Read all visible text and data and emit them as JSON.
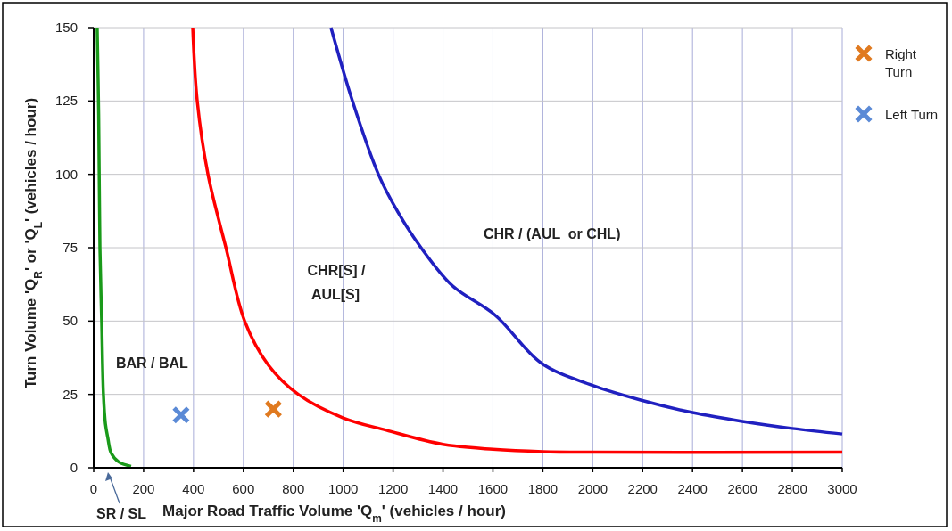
{
  "chart_data": {
    "type": "line",
    "xlabel": "Major Road Traffic Volume 'Q$_{m}$' (vehicles / hour)",
    "ylabel": "Turn Volume 'Q$_{R}$' or 'Q$_{L}$' (vehicles / hour)",
    "xlim": [
      0,
      3000
    ],
    "xticks": [
      0,
      200,
      400,
      600,
      800,
      1000,
      1200,
      1400,
      1600,
      1800,
      2000,
      2200,
      2400,
      2600,
      2800,
      3000
    ],
    "ylim": [
      0,
      150
    ],
    "yticks": [
      0,
      25,
      50,
      75,
      100,
      125,
      150
    ],
    "grid": true,
    "legend": "top right",
    "annotations": [
      "BAR / BAL",
      "CHR[S] / AUL[S]",
      "CHR / (AUL  or CHL)",
      "SR / SL"
    ],
    "series": [
      {
        "color": "#1a9a1a",
        "x": [
          14,
          20,
          25,
          32,
          39,
          47,
          57,
          70,
          100,
          150
        ],
        "values": [
          150,
          120,
          75,
          50,
          25,
          15,
          10,
          5,
          2,
          0.5
        ]
      },
      {
        "color": "#ff0000",
        "x": [
          397,
          415,
          458,
          530,
          605,
          700,
          820,
          1000,
          1173,
          1400,
          1600,
          1800,
          2000,
          3000
        ],
        "values": [
          150,
          125,
          100,
          75,
          50,
          35,
          25,
          17,
          12.8,
          8,
          6.3,
          5.5,
          5.3,
          5.3
        ]
      },
      {
        "color": "#2020c0",
        "x": [
          951,
          1037,
          1141,
          1220,
          1312,
          1438,
          1609,
          1795,
          1995,
          2195,
          2400,
          2600,
          2800,
          3000
        ],
        "values": [
          150,
          125,
          100,
          87,
          75,
          62,
          52,
          35.6,
          28.2,
          23,
          18.8,
          15.8,
          13.4,
          11.5
        ]
      },
      {
        "type": "scatter",
        "name": "Right Turn",
        "color": "#e07a20",
        "marker": "cross",
        "x": [
          720
        ],
        "values": [
          20
        ]
      },
      {
        "type": "scatter",
        "name": "Left Turn",
        "color": "#5b8ad6",
        "marker": "cross",
        "x": [
          350
        ],
        "values": [
          18
        ]
      }
    ]
  }
}
